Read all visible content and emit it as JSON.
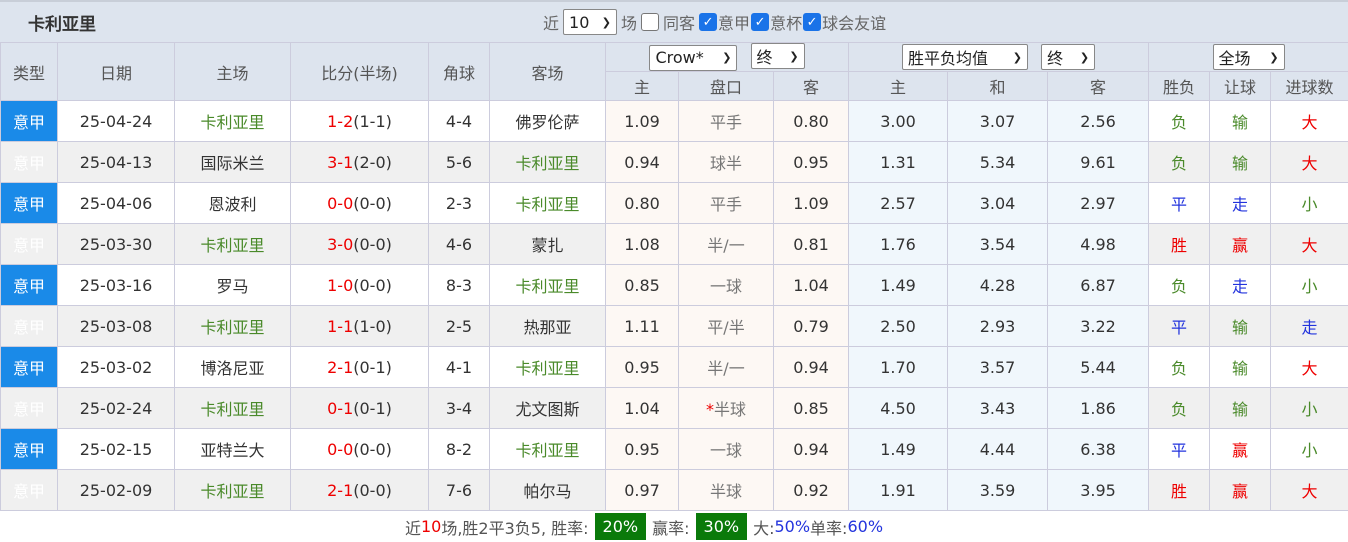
{
  "header": {
    "title": "卡利亚里",
    "near": "近",
    "count": "10",
    "games": "场",
    "same_guest": "同客",
    "same_guest_checked": false,
    "leagues": [
      {
        "label": "意甲",
        "checked": true
      },
      {
        "label": "意杯",
        "checked": true
      },
      {
        "label": "球会友谊",
        "checked": true
      }
    ]
  },
  "columns": {
    "type": "类型",
    "date": "日期",
    "home": "主场",
    "score": "比分(半场)",
    "corner": "角球",
    "away": "客场",
    "company": "Crow*",
    "handicap_stage": "终",
    "euro": "胜平负均值",
    "euro_stage": "终",
    "scope": "全场",
    "h_home": "主",
    "h_line": "盘口",
    "h_away": "客",
    "e_home": "主",
    "e_draw": "和",
    "e_away": "客",
    "wl": "胜负",
    "ah": "让球",
    "ou": "进球数"
  },
  "colors": {
    "type_bg": "#1a8ae8",
    "team_green": "#4a8a2a",
    "red": "#e00000",
    "blue": "#2233dd",
    "badge": "#0a7a0a"
  },
  "rows": [
    {
      "type": "意甲",
      "date": "25-04-24",
      "home": "卡利亚里",
      "home_hl": true,
      "ft": "1-2",
      "ht": "(1-1)",
      "corner": "4-4",
      "away": "佛罗伦萨",
      "away_hl": false,
      "hh": "1.09",
      "line": "平手",
      "ha": "0.80",
      "eh": "3.00",
      "ed": "3.07",
      "ea": "2.56",
      "wl": "负",
      "ah": "输",
      "ou": "大"
    },
    {
      "type": "意甲",
      "date": "25-04-13",
      "home": "国际米兰",
      "home_hl": false,
      "ft": "3-1",
      "ht": "(2-0)",
      "corner": "5-6",
      "away": "卡利亚里",
      "away_hl": true,
      "hh": "0.94",
      "line": "球半",
      "ha": "0.95",
      "eh": "1.31",
      "ed": "5.34",
      "ea": "9.61",
      "wl": "负",
      "ah": "输",
      "ou": "大"
    },
    {
      "type": "意甲",
      "date": "25-04-06",
      "home": "恩波利",
      "home_hl": false,
      "ft": "0-0",
      "ht": "(0-0)",
      "corner": "2-3",
      "away": "卡利亚里",
      "away_hl": true,
      "hh": "0.80",
      "line": "平手",
      "ha": "1.09",
      "eh": "2.57",
      "ed": "3.04",
      "ea": "2.97",
      "wl": "平",
      "ah": "走",
      "ou": "小"
    },
    {
      "type": "意甲",
      "date": "25-03-30",
      "home": "卡利亚里",
      "home_hl": true,
      "ft": "3-0",
      "ht": "(0-0)",
      "corner": "4-6",
      "away": "蒙扎",
      "away_hl": false,
      "hh": "1.08",
      "line": "半/一",
      "ha": "0.81",
      "eh": "1.76",
      "ed": "3.54",
      "ea": "4.98",
      "wl": "胜",
      "ah": "赢",
      "ou": "大"
    },
    {
      "type": "意甲",
      "date": "25-03-16",
      "home": "罗马",
      "home_hl": false,
      "ft": "1-0",
      "ht": "(0-0)",
      "corner": "8-3",
      "away": "卡利亚里",
      "away_hl": true,
      "hh": "0.85",
      "line": "一球",
      "ha": "1.04",
      "eh": "1.49",
      "ed": "4.28",
      "ea": "6.87",
      "wl": "负",
      "ah": "走",
      "ou": "小"
    },
    {
      "type": "意甲",
      "date": "25-03-08",
      "home": "卡利亚里",
      "home_hl": true,
      "ft": "1-1",
      "ht": "(1-0)",
      "corner": "2-5",
      "away": "热那亚",
      "away_hl": false,
      "hh": "1.11",
      "line": "平/半",
      "ha": "0.79",
      "eh": "2.50",
      "ed": "2.93",
      "ea": "3.22",
      "wl": "平",
      "ah": "输",
      "ou": "走"
    },
    {
      "type": "意甲",
      "date": "25-03-02",
      "home": "博洛尼亚",
      "home_hl": false,
      "ft": "2-1",
      "ht": "(0-1)",
      "corner": "4-1",
      "away": "卡利亚里",
      "away_hl": true,
      "hh": "0.95",
      "line": "半/一",
      "ha": "0.94",
      "eh": "1.70",
      "ed": "3.57",
      "ea": "5.44",
      "wl": "负",
      "ah": "输",
      "ou": "大"
    },
    {
      "type": "意甲",
      "date": "25-02-24",
      "home": "卡利亚里",
      "home_hl": true,
      "ft": "0-1",
      "ht": "(0-1)",
      "corner": "3-4",
      "away": "尤文图斯",
      "away_hl": false,
      "hh": "1.04",
      "line_star": "*",
      "line": "半球",
      "ha": "0.85",
      "eh": "4.50",
      "ed": "3.43",
      "ea": "1.86",
      "wl": "负",
      "ah": "输",
      "ou": "小"
    },
    {
      "type": "意甲",
      "date": "25-02-15",
      "home": "亚特兰大",
      "home_hl": false,
      "ft": "0-0",
      "ht": "(0-0)",
      "corner": "8-2",
      "away": "卡利亚里",
      "away_hl": true,
      "hh": "0.95",
      "line": "一球",
      "ha": "0.94",
      "eh": "1.49",
      "ed": "4.44",
      "ea": "6.38",
      "wl": "平",
      "ah": "赢",
      "ou": "小"
    },
    {
      "type": "意甲",
      "date": "25-02-09",
      "home": "卡利亚里",
      "home_hl": true,
      "ft": "2-1",
      "ht": "(0-0)",
      "corner": "7-6",
      "away": "帕尔马",
      "away_hl": false,
      "hh": "0.97",
      "line": "半球",
      "ha": "0.92",
      "eh": "1.91",
      "ed": "3.59",
      "ea": "3.95",
      "wl": "胜",
      "ah": "赢",
      "ou": "大"
    }
  ],
  "footer": {
    "p1": "近",
    "n": "10",
    "p2": "场,胜2平3负5, 胜率:",
    "win_rate": "20%",
    "p3": "赢率:",
    "ah_rate": "30%",
    "p4": "大:",
    "over_rate": "50%",
    "p5": " 单率:",
    "odd_rate": "60%"
  }
}
